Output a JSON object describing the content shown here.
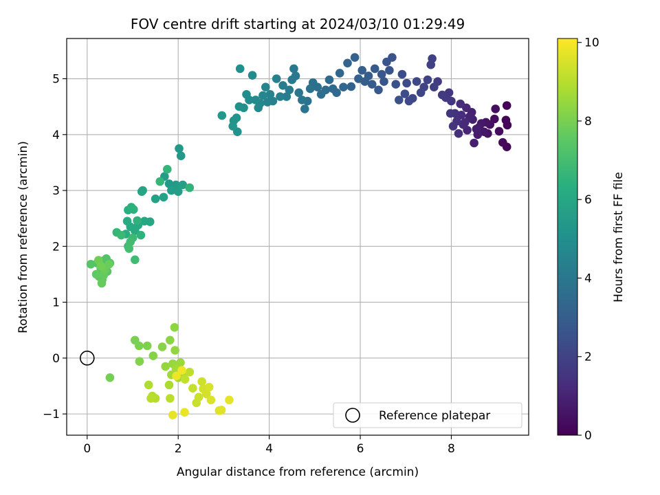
{
  "chart_data": {
    "type": "scatter",
    "title": "FOV centre drift starting at 2024/03/10 01:29:49",
    "xlabel": "Angular distance from reference (arcmin)",
    "ylabel": "Rotation from reference (arcmin)",
    "xlim": [
      -0.45,
      9.7
    ],
    "ylim": [
      -1.38,
      5.72
    ],
    "xticks": [
      0,
      2,
      4,
      6,
      8
    ],
    "yticks": [
      -1,
      0,
      1,
      2,
      3,
      4,
      5
    ],
    "grid": true,
    "legend": {
      "position": "lower-right",
      "entries": [
        "Reference platepar"
      ]
    },
    "colorbar": {
      "label": "Hours from first FF file",
      "range": [
        0,
        10.1
      ],
      "ticks": [
        0,
        2,
        4,
        6,
        8,
        10
      ],
      "tick_labels": [
        "0",
        "2",
        "4",
        "6",
        "8",
        "10"
      ],
      "colormap": "viridis"
    },
    "reference_point": {
      "x": 0,
      "y": 0
    },
    "points": [
      [
        9.22,
        4.52,
        0.05
      ],
      [
        9.2,
        4.26,
        0.1
      ],
      [
        9.23,
        4.17,
        0.15
      ],
      [
        9.22,
        3.78,
        0.2
      ],
      [
        9.13,
        3.86,
        0.25
      ],
      [
        9.05,
        4.06,
        0.3
      ],
      [
        8.95,
        4.28,
        0.35
      ],
      [
        8.97,
        4.46,
        0.4
      ],
      [
        8.85,
        4.18,
        0.45
      ],
      [
        8.8,
        4.02,
        0.5
      ],
      [
        8.76,
        4.22,
        0.55
      ],
      [
        8.72,
        4.05,
        0.6
      ],
      [
        8.66,
        4.2,
        0.65
      ],
      [
        8.61,
        4.13,
        0.7
      ],
      [
        8.58,
        4.0,
        0.75
      ],
      [
        8.55,
        4.1,
        0.8
      ],
      [
        8.5,
        3.85,
        0.85
      ],
      [
        8.47,
        4.27,
        0.9
      ],
      [
        8.45,
        4.4,
        0.95
      ],
      [
        8.4,
        4.32,
        1.0
      ],
      [
        8.35,
        4.08,
        1.05
      ],
      [
        8.33,
        4.48,
        1.1
      ],
      [
        8.3,
        4.22,
        1.15
      ],
      [
        8.26,
        4.18,
        1.2
      ],
      [
        8.22,
        4.35,
        1.25
      ],
      [
        8.2,
        4.55,
        1.3
      ],
      [
        8.16,
        4.02,
        1.35
      ],
      [
        8.12,
        4.24,
        1.4
      ],
      [
        8.08,
        4.38,
        1.45
      ],
      [
        8.04,
        4.15,
        1.5
      ],
      [
        7.98,
        4.38,
        1.55
      ],
      [
        8.0,
        4.6,
        1.6
      ],
      [
        7.95,
        4.75,
        1.65
      ],
      [
        7.88,
        4.66,
        1.7
      ],
      [
        7.8,
        4.71,
        1.75
      ],
      [
        7.7,
        4.95,
        1.8
      ],
      [
        7.62,
        4.85,
        1.85
      ],
      [
        7.55,
        5.25,
        1.9
      ],
      [
        7.58,
        5.36,
        1.95
      ],
      [
        7.48,
        4.98,
        2.0
      ],
      [
        7.4,
        4.85,
        2.05
      ],
      [
        7.33,
        4.75,
        2.1
      ],
      [
        7.24,
        4.95,
        2.15
      ],
      [
        7.15,
        4.65,
        2.2
      ],
      [
        7.07,
        4.6,
        2.25
      ],
      [
        7.02,
        4.92,
        2.3
      ],
      [
        6.98,
        4.73,
        2.35
      ],
      [
        6.92,
        5.08,
        2.4
      ],
      [
        6.85,
        4.62,
        2.45
      ],
      [
        6.78,
        4.9,
        2.5
      ],
      [
        6.7,
        5.38,
        2.55
      ],
      [
        6.64,
        5.15,
        2.6
      ],
      [
        6.58,
        5.3,
        2.65
      ],
      [
        6.52,
        4.95,
        2.7
      ],
      [
        6.47,
        5.08,
        2.75
      ],
      [
        6.4,
        4.8,
        2.8
      ],
      [
        6.32,
        5.18,
        2.85
      ],
      [
        6.26,
        4.9,
        2.9
      ],
      [
        6.18,
        5.05,
        2.95
      ],
      [
        6.1,
        4.95,
        3.0
      ],
      [
        6.04,
        5.15,
        3.05
      ],
      [
        5.96,
        5.0,
        3.1
      ],
      [
        5.88,
        5.38,
        3.15
      ],
      [
        5.8,
        4.86,
        3.2
      ],
      [
        5.72,
        5.28,
        3.25
      ],
      [
        5.63,
        4.85,
        3.3
      ],
      [
        5.55,
        5.1,
        3.35
      ],
      [
        5.48,
        4.75,
        3.4
      ],
      [
        5.4,
        4.82,
        3.45
      ],
      [
        5.32,
        4.98,
        3.5
      ],
      [
        5.24,
        4.8,
        3.55
      ],
      [
        5.14,
        4.72,
        3.6
      ],
      [
        5.06,
        4.85,
        3.65
      ],
      [
        4.96,
        4.93,
        3.7
      ],
      [
        4.9,
        4.82,
        3.75
      ],
      [
        4.84,
        4.6,
        3.8
      ],
      [
        4.78,
        4.46,
        3.85
      ],
      [
        4.72,
        4.62,
        3.9
      ],
      [
        4.65,
        4.75,
        3.95
      ],
      [
        4.58,
        5.05,
        4.0
      ],
      [
        4.54,
        5.18,
        4.05
      ],
      [
        4.5,
        4.98,
        4.1
      ],
      [
        4.44,
        4.8,
        4.15
      ],
      [
        4.38,
        4.68,
        4.2
      ],
      [
        4.3,
        4.88,
        4.25
      ],
      [
        4.24,
        4.68,
        4.3
      ],
      [
        4.16,
        5.0,
        4.35
      ],
      [
        4.08,
        4.6,
        4.4
      ],
      [
        4.02,
        4.72,
        4.45
      ],
      [
        3.96,
        4.58,
        4.5
      ],
      [
        3.92,
        4.85,
        4.55
      ],
      [
        3.86,
        4.7,
        4.6
      ],
      [
        3.8,
        4.56,
        4.65
      ],
      [
        3.76,
        4.48,
        4.7
      ],
      [
        3.7,
        4.62,
        4.75
      ],
      [
        3.63,
        5.06,
        4.8
      ],
      [
        3.56,
        4.62,
        4.85
      ],
      [
        3.5,
        4.72,
        4.9
      ],
      [
        3.44,
        4.48,
        4.95
      ],
      [
        3.36,
        5.18,
        5.0
      ],
      [
        3.34,
        4.5,
        5.05
      ],
      [
        3.3,
        4.05,
        5.1
      ],
      [
        3.22,
        4.25,
        5.15
      ],
      [
        3.28,
        4.3,
        5.2
      ],
      [
        3.2,
        4.15,
        5.25
      ],
      [
        2.96,
        4.34,
        5.3
      ],
      [
        2.02,
        3.75,
        5.35
      ],
      [
        2.06,
        3.62,
        5.4
      ],
      [
        1.8,
        3.12,
        5.45
      ],
      [
        1.95,
        3.1,
        5.5
      ],
      [
        1.7,
        3.25,
        5.55
      ],
      [
        1.85,
        3.0,
        5.6
      ],
      [
        2.0,
        2.98,
        5.65
      ],
      [
        2.1,
        3.1,
        5.7
      ],
      [
        1.5,
        2.85,
        5.75
      ],
      [
        1.68,
        2.88,
        5.8
      ],
      [
        1.22,
        3.0,
        5.85
      ],
      [
        1.2,
        2.98,
        5.9
      ],
      [
        1.38,
        2.44,
        5.95
      ],
      [
        1.26,
        2.45,
        6.0
      ],
      [
        1.12,
        2.38,
        6.05
      ],
      [
        1.05,
        2.28,
        6.1
      ],
      [
        0.95,
        2.35,
        6.15
      ],
      [
        0.88,
        2.45,
        6.2
      ],
      [
        0.85,
        2.22,
        6.25
      ],
      [
        0.9,
        2.65,
        6.3
      ],
      [
        0.97,
        2.7,
        6.35
      ],
      [
        1.02,
        2.66,
        6.4
      ],
      [
        1.1,
        2.46,
        6.45
      ],
      [
        1.18,
        2.2,
        6.5
      ],
      [
        2.25,
        3.05,
        6.55
      ],
      [
        1.76,
        3.38,
        6.6
      ],
      [
        1.6,
        3.16,
        6.65
      ],
      [
        0.65,
        2.25,
        6.7
      ],
      [
        0.75,
        2.2,
        6.75
      ],
      [
        1.0,
        2.15,
        6.8
      ],
      [
        0.9,
        2.0,
        6.85
      ],
      [
        1.05,
        1.76,
        6.9
      ],
      [
        0.95,
        2.08,
        6.95
      ],
      [
        0.92,
        1.96,
        7.0
      ],
      [
        0.35,
        1.74,
        7.05
      ],
      [
        0.4,
        1.68,
        7.1
      ],
      [
        0.28,
        1.72,
        7.15
      ],
      [
        0.22,
        1.7,
        7.2
      ],
      [
        0.5,
        1.7,
        7.25
      ],
      [
        0.42,
        1.78,
        7.3
      ],
      [
        0.08,
        1.68,
        7.35
      ],
      [
        0.3,
        1.6,
        7.4
      ],
      [
        0.44,
        1.55,
        7.45
      ],
      [
        0.33,
        1.4,
        7.5
      ],
      [
        0.26,
        1.46,
        7.55
      ],
      [
        0.2,
        1.5,
        7.6
      ],
      [
        0.36,
        1.48,
        7.65
      ],
      [
        0.32,
        1.34,
        7.7
      ],
      [
        0.48,
        1.68,
        7.75
      ],
      [
        0.38,
        1.58,
        7.8
      ],
      [
        0.25,
        1.75,
        7.85
      ],
      [
        0.3,
        1.65,
        7.9
      ],
      [
        0.5,
        -0.35,
        7.95
      ],
      [
        1.05,
        0.32,
        8.0
      ],
      [
        1.14,
        0.22,
        8.05
      ],
      [
        1.32,
        0.22,
        8.1
      ],
      [
        1.15,
        -0.06,
        8.15
      ],
      [
        1.45,
        0.04,
        8.2
      ],
      [
        1.65,
        0.2,
        8.25
      ],
      [
        1.82,
        0.32,
        8.3
      ],
      [
        1.92,
        0.55,
        8.35
      ],
      [
        1.93,
        0.14,
        8.4
      ],
      [
        1.72,
        -0.15,
        8.45
      ],
      [
        1.88,
        -0.1,
        8.5
      ],
      [
        2.05,
        -0.08,
        8.55
      ],
      [
        2.0,
        -0.35,
        8.6
      ],
      [
        1.85,
        -0.3,
        8.65
      ],
      [
        1.95,
        -0.2,
        8.7
      ],
      [
        2.1,
        -0.28,
        8.75
      ],
      [
        1.8,
        -0.48,
        8.8
      ],
      [
        1.35,
        -0.48,
        8.85
      ],
      [
        1.43,
        -0.68,
        8.9
      ],
      [
        1.5,
        -0.72,
        8.95
      ],
      [
        1.4,
        -0.72,
        9.0
      ],
      [
        1.82,
        -0.72,
        9.05
      ],
      [
        2.25,
        -0.25,
        9.1
      ],
      [
        2.15,
        -0.38,
        9.15
      ],
      [
        2.32,
        -0.54,
        9.2
      ],
      [
        2.4,
        -0.8,
        9.25
      ],
      [
        2.45,
        -0.7,
        9.3
      ],
      [
        2.52,
        -0.42,
        9.35
      ],
      [
        2.55,
        -0.55,
        9.4
      ],
      [
        2.62,
        -0.64,
        9.45
      ],
      [
        2.68,
        -0.52,
        9.5
      ],
      [
        2.72,
        -0.75,
        9.55
      ],
      [
        2.9,
        -0.94,
        9.6
      ],
      [
        2.95,
        -0.93,
        9.65
      ],
      [
        3.12,
        -0.75,
        9.7
      ],
      [
        1.88,
        -1.02,
        9.75
      ],
      [
        2.14,
        -0.97,
        9.8
      ],
      [
        1.96,
        -0.32,
        9.85
      ],
      [
        2.08,
        -0.22,
        9.9
      ]
    ]
  }
}
